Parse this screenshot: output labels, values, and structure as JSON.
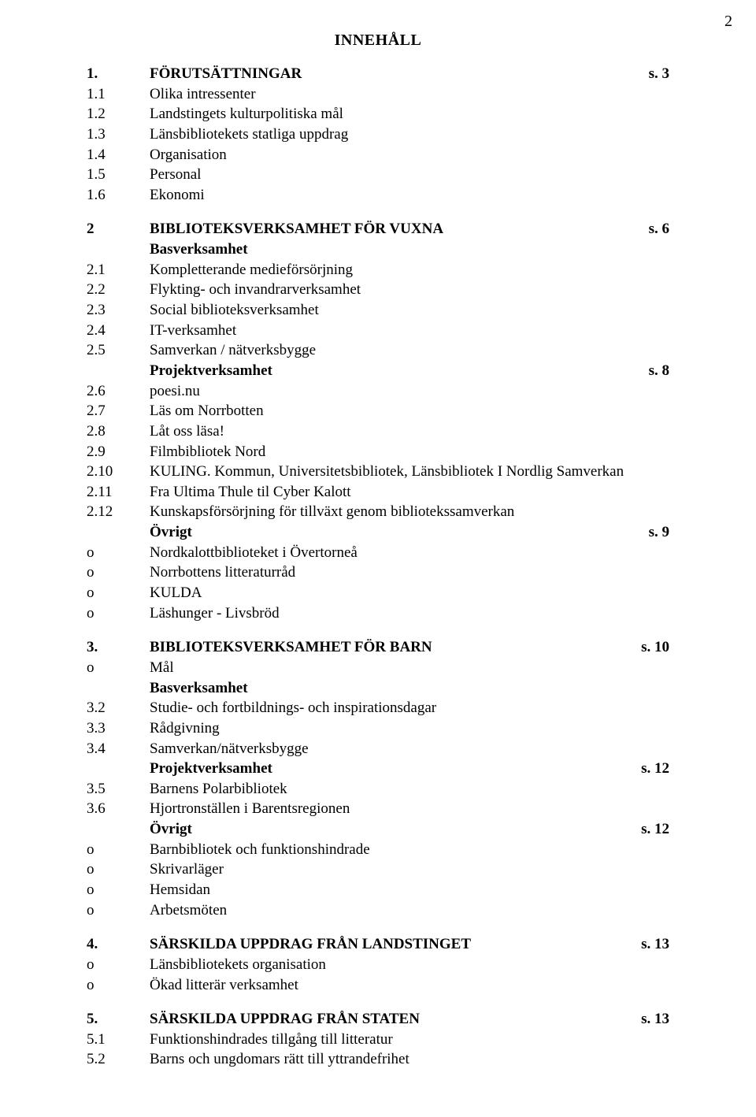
{
  "pageNumber": "2",
  "title": "INNEHÅLL",
  "rows": [
    {
      "n": "1.",
      "t": "FÖRUTSÄTTNINGAR",
      "p": "s. 3",
      "bn": true,
      "bt": true,
      "bp": true
    },
    {
      "n": "1.1",
      "t": "Olika intressenter",
      "p": ""
    },
    {
      "n": "1.2",
      "t": "Landstingets kulturpolitiska mål",
      "p": ""
    },
    {
      "n": "1.3",
      "t": "Länsbibliotekets statliga uppdrag",
      "p": ""
    },
    {
      "n": "1.4",
      "t": "Organisation",
      "p": ""
    },
    {
      "n": "1.5",
      "t": "Personal",
      "p": ""
    },
    {
      "n": "1.6",
      "t": "Ekonomi",
      "p": ""
    },
    {
      "gap": true
    },
    {
      "n": "2",
      "t": "BIBLIOTEKSVERKSAMHET FÖR VUXNA",
      "p": "s. 6",
      "bn": true,
      "bt": true,
      "bp": true
    },
    {
      "n": "",
      "t": "Basverksamhet",
      "p": "",
      "bt": true
    },
    {
      "n": "2.1",
      "t": "Kompletterande medieförsörjning",
      "p": ""
    },
    {
      "n": "2.2",
      "t": "Flykting- och invandrarverksamhet",
      "p": ""
    },
    {
      "n": "2.3",
      "t": "Social biblioteksverksamhet",
      "p": ""
    },
    {
      "n": "2.4",
      "t": "IT-verksamhet",
      "p": ""
    },
    {
      "n": "2.5",
      "t": "Samverkan / nätverksbygge",
      "p": ""
    },
    {
      "n": "",
      "t": "Projektverksamhet",
      "p": "s. 8",
      "bt": true,
      "bp": true
    },
    {
      "n": "2.6",
      "t": "poesi.nu",
      "p": ""
    },
    {
      "n": "2.7",
      "t": "Läs om Norrbotten",
      "p": ""
    },
    {
      "n": "2.8",
      "t": "Låt oss läsa!",
      "p": ""
    },
    {
      "n": "2.9",
      "t": "Filmbibliotek Nord",
      "p": ""
    },
    {
      "n": "2.10",
      "t": "KULING. Kommun, Universitetsbibliotek, Länsbibliotek I Nordlig Samverkan",
      "p": ""
    },
    {
      "n": "2.11",
      "t": "Fra Ultima Thule til Cyber Kalott",
      "p": ""
    },
    {
      "n": "2.12",
      "t": "Kunskapsförsörjning för tillväxt genom bibliotekssamverkan",
      "p": ""
    },
    {
      "n": "",
      "t": "Övrigt",
      "p": "s. 9",
      "bt": true,
      "bp": true
    },
    {
      "n": "o",
      "t": "Nordkalottbiblioteket i Övertorneå",
      "p": ""
    },
    {
      "n": "o",
      "t": "Norrbottens litteraturråd",
      "p": ""
    },
    {
      "n": "o",
      "t": "KULDA",
      "p": ""
    },
    {
      "n": "o",
      "t": "Läshunger - Livsbröd",
      "p": ""
    },
    {
      "gap": true
    },
    {
      "n": "3.",
      "t": "BIBLIOTEKSVERKSAMHET FÖR BARN",
      "p": "s. 10",
      "bn": true,
      "bt": true,
      "bp": true
    },
    {
      "n": "o",
      "t": "Mål",
      "p": ""
    },
    {
      "n": "",
      "t": "Basverksamhet",
      "p": "",
      "bt": true
    },
    {
      "n": "3.2",
      "t": "Studie- och fortbildnings- och inspirationsdagar",
      "p": ""
    },
    {
      "n": "3.3",
      "t": "Rådgivning",
      "p": ""
    },
    {
      "n": "3.4",
      "t": "Samverkan/nätverksbygge",
      "p": ""
    },
    {
      "n": "",
      "t": "Projektverksamhet",
      "p": "s. 12",
      "bt": true,
      "bp": true
    },
    {
      "n": "3.5",
      "t": "Barnens Polarbibliotek",
      "p": ""
    },
    {
      "n": "3.6",
      "t": "Hjortronställen i Barentsregionen",
      "p": ""
    },
    {
      "n": "",
      "t": "Övrigt",
      "p": "s. 12",
      "bt": true,
      "bp": true
    },
    {
      "n": "o",
      "t": "Barnbibliotek och funktionshindrade",
      "p": ""
    },
    {
      "n": "o",
      "t": "Skrivarläger",
      "p": ""
    },
    {
      "n": "o",
      "t": "Hemsidan",
      "p": ""
    },
    {
      "n": "o",
      "t": "Arbetsmöten",
      "p": ""
    },
    {
      "gap": true
    },
    {
      "n": "4.",
      "t": "SÄRSKILDA UPPDRAG FRÅN LANDSTINGET",
      "p": "s. 13",
      "bn": true,
      "bt": true,
      "bp": true
    },
    {
      "n": "o",
      "t": "Länsbibliotekets organisation",
      "p": ""
    },
    {
      "n": "o",
      "t": "Ökad litterär verksamhet",
      "p": ""
    },
    {
      "gap": true
    },
    {
      "n": "5.",
      "t": "SÄRSKILDA UPPDRAG FRÅN STATEN",
      "p": "s. 13",
      "bn": true,
      "bt": true,
      "bp": true
    },
    {
      "n": "5.1",
      "t": "Funktionshindrades tillgång till litteratur",
      "p": ""
    },
    {
      "n": "5.2",
      "t": "Barns och ungdomars rätt till yttrandefrihet",
      "p": ""
    }
  ]
}
